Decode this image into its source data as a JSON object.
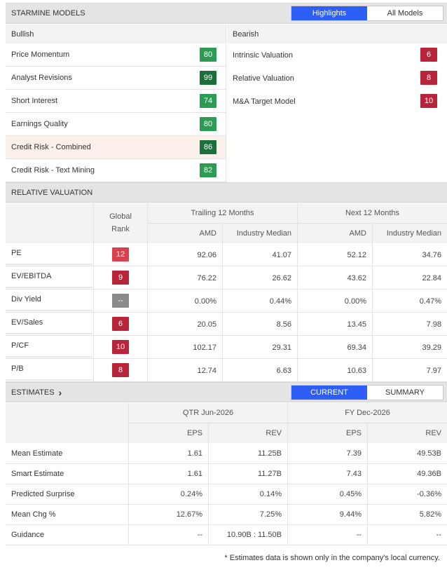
{
  "starmine": {
    "title": "STARMINE MODELS",
    "tabs": [
      "Highlights",
      "All Models"
    ],
    "active_tab": 0,
    "bullish_label": "Bullish",
    "bearish_label": "Bearish",
    "bullish": [
      {
        "label": "Price Momentum",
        "score": "80",
        "color": "#2e9b55"
      },
      {
        "label": "Analyst Revisions",
        "score": "99",
        "color": "#1c6e3b"
      },
      {
        "label": "Short Interest",
        "score": "74",
        "color": "#2e9b55"
      },
      {
        "label": "Earnings Quality",
        "score": "80",
        "color": "#2e9b55"
      },
      {
        "label": "Credit Risk - Combined",
        "score": "86",
        "color": "#1c6e3b"
      },
      {
        "label": "Credit Risk - Text Mining",
        "score": "82",
        "color": "#2e9b55"
      }
    ],
    "bearish": [
      {
        "label": "Intrinsic Valuation",
        "score": "6",
        "color": "#b8243a"
      },
      {
        "label": "Relative Valuation",
        "score": "8",
        "color": "#b8243a"
      },
      {
        "label": "M&A Target Model",
        "score": "10",
        "color": "#b8243a"
      }
    ]
  },
  "relative_valuation": {
    "title": "RELATIVE VALUATION",
    "global_rank_label": "Global\nRank",
    "trailing_label": "Trailing 12 Months",
    "next_label": "Next 12 Months",
    "col_amd": "AMD",
    "col_median": "Industry Median",
    "rows": [
      {
        "label": "PE",
        "rank": "12",
        "rank_color": "#d9414f",
        "t_amd": "92.06",
        "t_med": "41.07",
        "n_amd": "52.12",
        "n_med": "34.76"
      },
      {
        "label": "EV/EBITDA",
        "rank": "9",
        "rank_color": "#b8243a",
        "t_amd": "76.22",
        "t_med": "26.62",
        "n_amd": "43.62",
        "n_med": "22.84"
      },
      {
        "label": "Div Yield",
        "rank": "--",
        "rank_color": "#8a8a8a",
        "t_amd": "0.00%",
        "t_med": "0.44%",
        "n_amd": "0.00%",
        "n_med": "0.47%"
      },
      {
        "label": "EV/Sales",
        "rank": "6",
        "rank_color": "#b8243a",
        "t_amd": "20.05",
        "t_med": "8.56",
        "n_amd": "13.45",
        "n_med": "7.98"
      },
      {
        "label": "P/CF",
        "rank": "10",
        "rank_color": "#b8243a",
        "t_amd": "102.17",
        "t_med": "29.31",
        "n_amd": "69.34",
        "n_med": "39.29"
      },
      {
        "label": "P/B",
        "rank": "8",
        "rank_color": "#b8243a",
        "t_amd": "12.74",
        "t_med": "6.63",
        "n_amd": "10.63",
        "n_med": "7.97"
      }
    ]
  },
  "estimates": {
    "title": "ESTIMATES",
    "chevron": "›",
    "tabs": [
      "CURRENT",
      "SUMMARY"
    ],
    "active_tab": 0,
    "qtr_label": "QTR Jun-2026",
    "fy_label": "FY Dec-2026",
    "col_eps": "EPS",
    "col_rev": "REV",
    "rows": [
      {
        "label": "Mean Estimate",
        "q_eps": "1.61",
        "q_rev": "11.25B",
        "f_eps": "7.39",
        "f_rev": "49.53B"
      },
      {
        "label": "Smart Estimate",
        "q_eps": "1.61",
        "q_rev": "11.27B",
        "f_eps": "7.43",
        "f_rev": "49.36B"
      },
      {
        "label": "Predicted Surprise",
        "q_eps": "0.24%",
        "q_rev": "0.14%",
        "f_eps": "0.45%",
        "f_rev": "-0.36%"
      },
      {
        "label": "Mean Chg %",
        "q_eps": "12.67%",
        "q_rev": "7.25%",
        "f_eps": "9.44%",
        "f_rev": "5.82%"
      },
      {
        "label": "Guidance",
        "q_eps": "--",
        "q_rev": "10.90B : 11.50B",
        "f_eps": "--",
        "f_rev": "--"
      }
    ],
    "footnote": "* Estimates data is shown only in the company's local currency."
  }
}
